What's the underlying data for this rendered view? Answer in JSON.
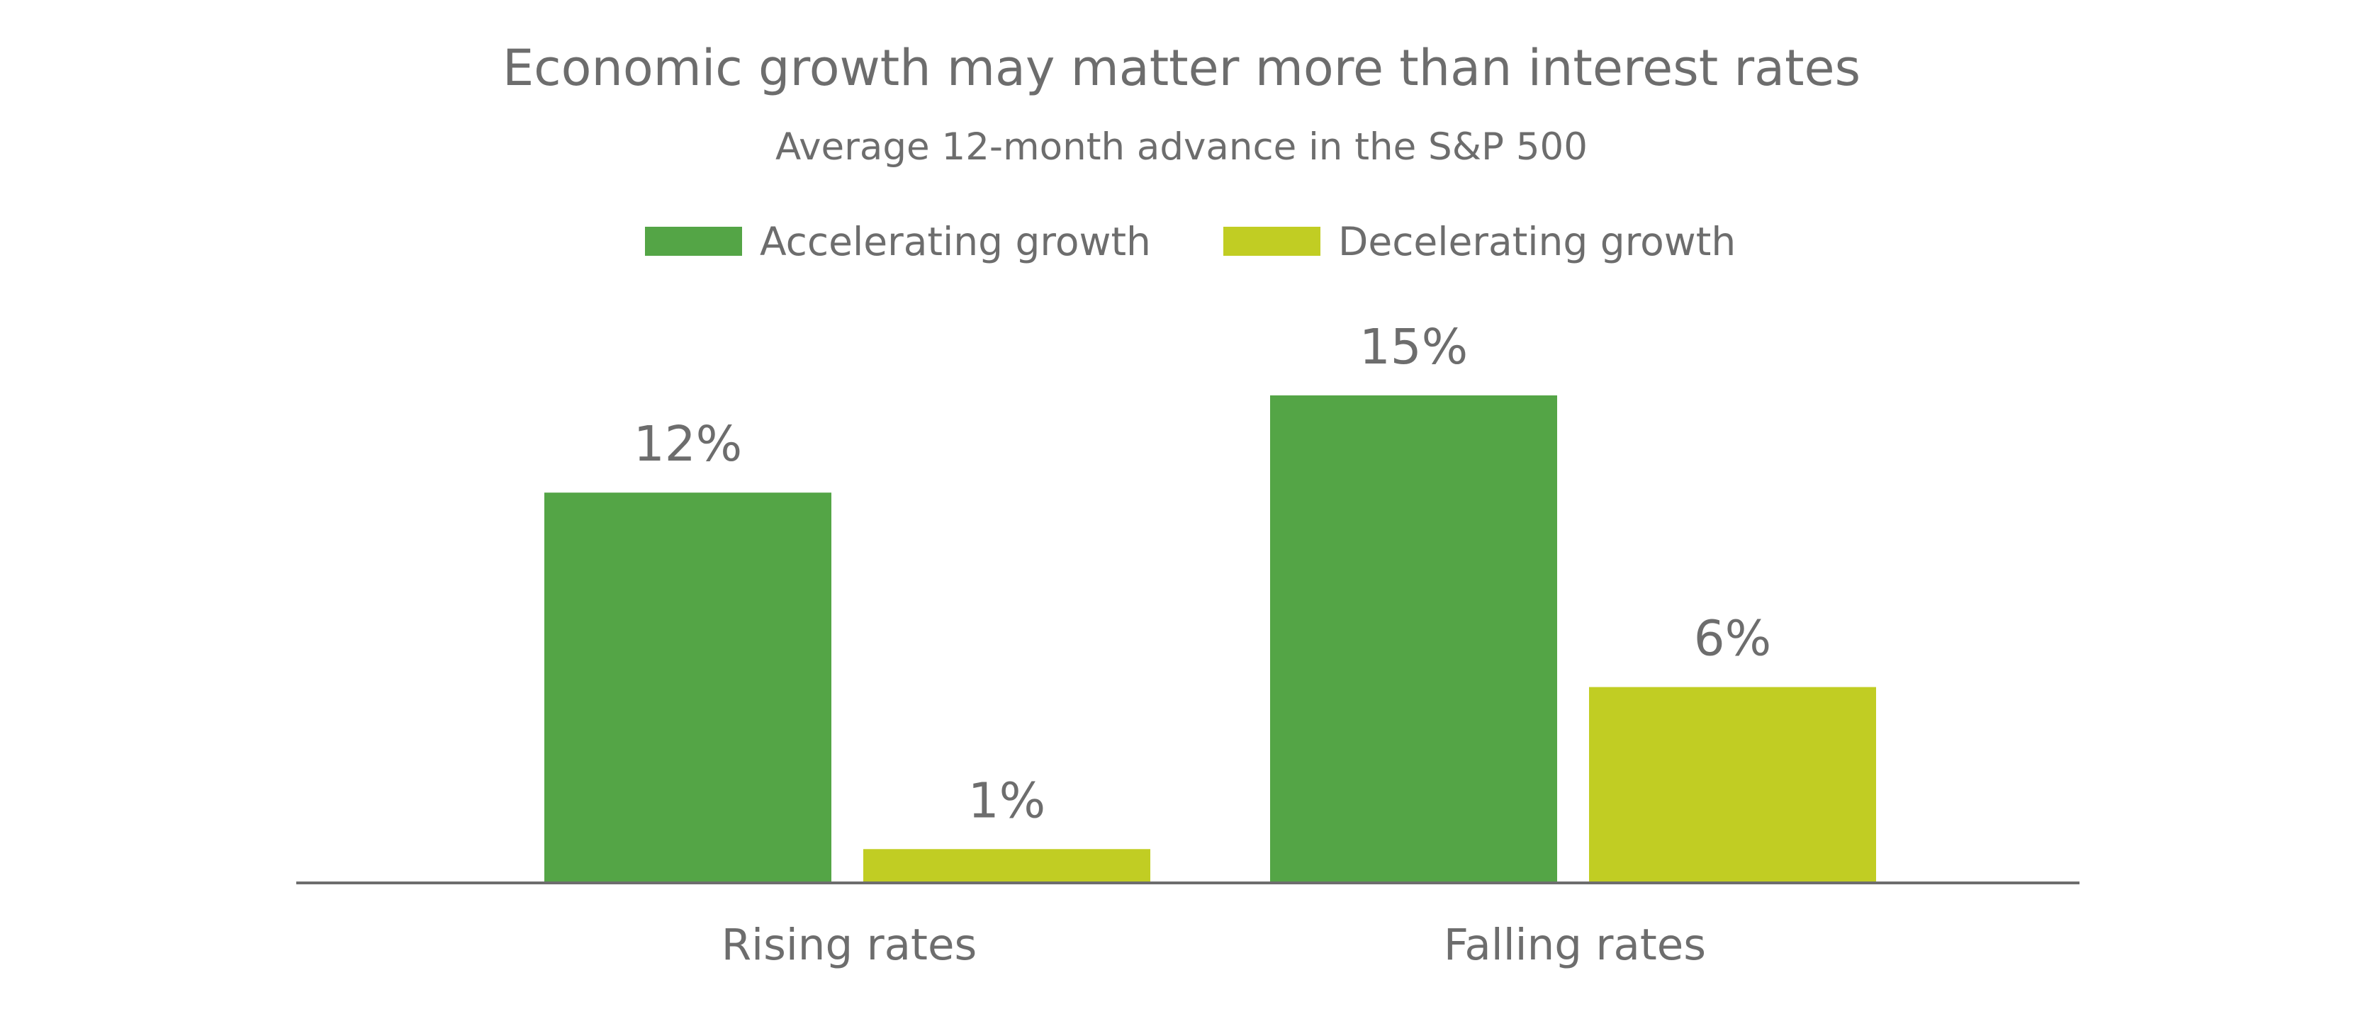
{
  "chart_data": {
    "type": "bar",
    "title": "Economic growth may matter more than interest rates",
    "subtitle": "Average 12-month advance in the S&P 500",
    "categories": [
      "Rising rates",
      "Falling rates"
    ],
    "series": [
      {
        "name": "Accelerating growth",
        "color": "#54a546",
        "values": [
          12,
          15
        ],
        "labels": [
          "12%",
          "15%"
        ]
      },
      {
        "name": "Decelerating growth",
        "color": "#c1cd23",
        "values": [
          1,
          6
        ],
        "labels": [
          "1%",
          "6%"
        ]
      }
    ],
    "ylim": [
      0,
      15
    ],
    "xlabel": "",
    "ylabel": "",
    "grid": false,
    "legend": "top-center",
    "axis_color": "#6d6d6d"
  }
}
